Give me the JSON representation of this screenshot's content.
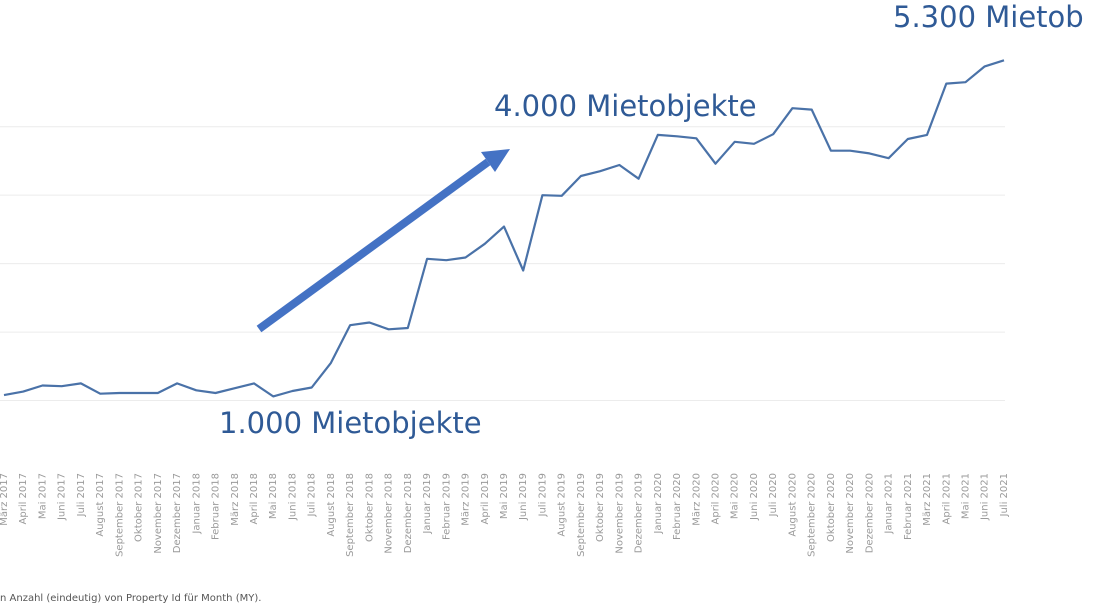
{
  "chart_data": {
    "type": "line",
    "x": [
      "März 2017",
      "April 2017",
      "Mai 2017",
      "Juni 2017",
      "Juli 2017",
      "August 2017",
      "September 2017",
      "Oktober 2017",
      "November 2017",
      "Dezember 2017",
      "Januar 2018",
      "Februar 2018",
      "März 2018",
      "April 2018",
      "Mai 2018",
      "Juni 2018",
      "Juli 2018",
      "August 2018",
      "September 2018",
      "Oktober 2018",
      "November 2018",
      "Dezember 2018",
      "Januar 2019",
      "Februar 2019",
      "März 2019",
      "April 2019",
      "Mai 2019",
      "Juni 2019",
      "Juli 2019",
      "August 2019",
      "September 2019",
      "Oktober 2019",
      "November 2019",
      "Dezember 2019",
      "Januar 2020",
      "Februar 2020",
      "März 2020",
      "April 2020",
      "Mai 2020",
      "Juni 2020",
      "Juli 2020",
      "August 2020",
      "September 2020",
      "Oktober 2020",
      "November 2020",
      "Dezember 2020",
      "Januar 2021",
      "Februar 2021",
      "März 2021",
      "April 2021",
      "Mai 2021",
      "Juni 2021",
      "Juli 2021"
    ],
    "series": [
      {
        "values": [
          1080,
          1130,
          1220,
          1210,
          1250,
          1100,
          1110,
          1110,
          1110,
          1250,
          1150,
          1110,
          1180,
          1250,
          1060,
          1140,
          1190,
          1550,
          2100,
          2140,
          2040,
          2060,
          3070,
          3050,
          3090,
          3290,
          3540,
          2900,
          4000,
          3990,
          4280,
          4350,
          4440,
          4240,
          4880,
          4860,
          4830,
          4460,
          4780,
          4750,
          4890,
          5270,
          5250,
          4650,
          4650,
          4610,
          4540,
          4820,
          4880,
          5630,
          5650,
          5880,
          5970
        ],
        "color": "#4a72a8"
      }
    ],
    "ylim": [
      0,
      6500
    ],
    "grid_values": [
      1000,
      2000,
      3000,
      4000,
      5000
    ],
    "grid": true,
    "annotations": [
      {
        "text": "5.300 Mietob"
      },
      {
        "text": "4.000 Mietobjekte"
      },
      {
        "text": "1.000 Mietobjekte"
      }
    ],
    "arrow_color": "#4472c4",
    "footnote": "n Anzahl (eindeutig) von Property Id für Month (MY)."
  }
}
